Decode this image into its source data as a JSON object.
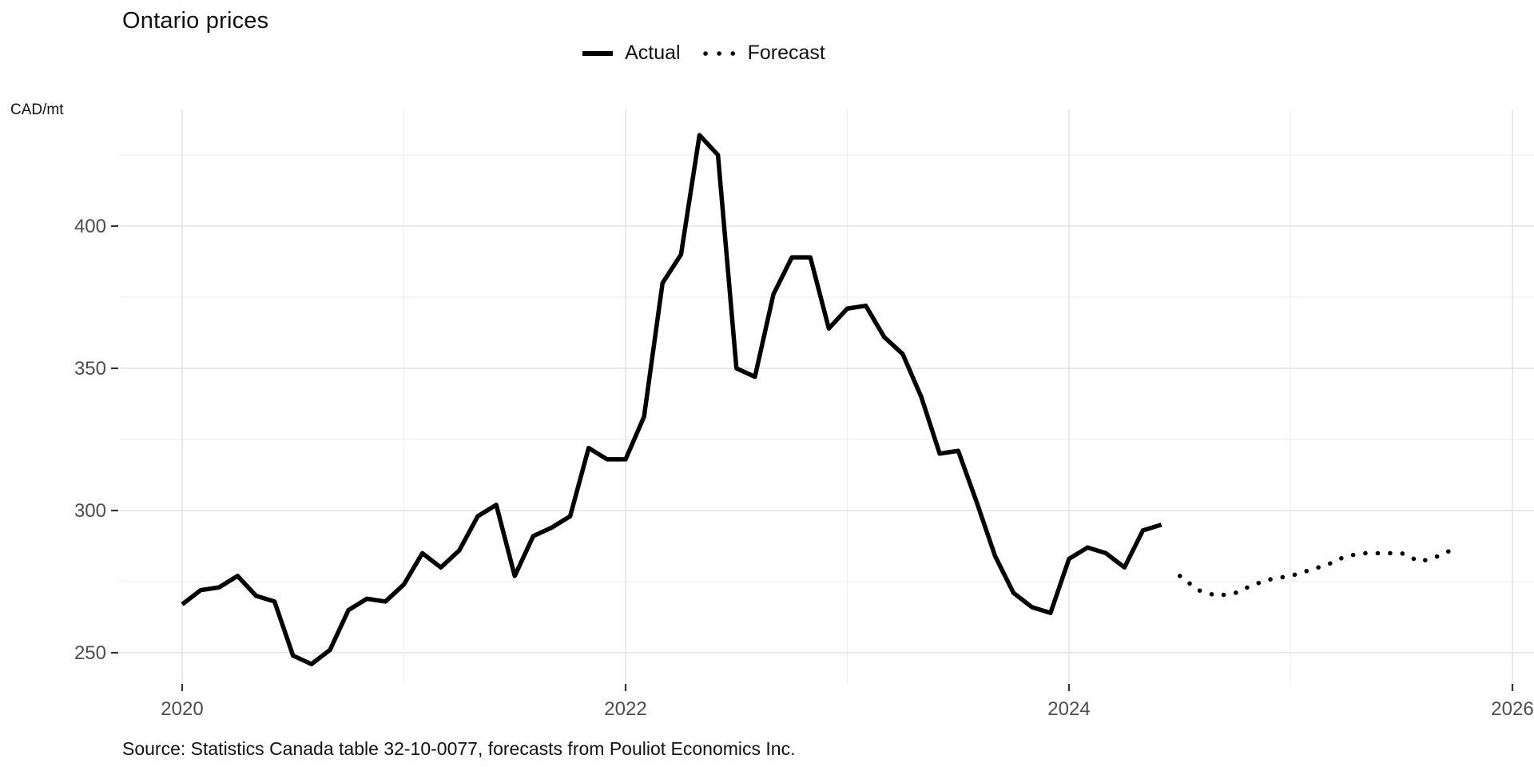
{
  "chart_data": {
    "type": "line",
    "title": "Ontario prices",
    "unit_label": "CAD/mt",
    "caption": "Source: Statistics Canada table 32-10-0077, forecasts from Pouliot Economics Inc.",
    "x_axis": {
      "tick_labels": [
        "2020",
        "2022",
        "2024",
        "2026"
      ],
      "major_years": [
        2020,
        2022,
        2024,
        2026
      ],
      "minor_years": [
        2021,
        2023,
        2025
      ],
      "range_years": [
        2019.66,
        2026.1
      ]
    },
    "y_axis": {
      "tick_labels": [
        "250",
        "300",
        "350",
        "400"
      ],
      "major_values": [
        250,
        300,
        350,
        400
      ],
      "minor_values": [
        275,
        325,
        375,
        425
      ],
      "range": [
        239,
        441
      ]
    },
    "legend_position": "top-center",
    "grid": true,
    "series": [
      {
        "name": "Actual",
        "style": "solid",
        "start_month": "2020-01",
        "start_index": 0,
        "values": [
          267,
          272,
          273,
          277,
          270,
          268,
          249,
          246,
          251,
          265,
          269,
          268,
          274,
          285,
          280,
          286,
          298,
          302,
          277,
          291,
          294,
          298,
          322,
          318,
          318,
          333,
          380,
          390,
          432,
          425,
          350,
          347,
          376,
          389,
          389,
          364,
          371,
          372,
          361,
          355,
          340,
          320,
          321,
          303,
          284,
          271,
          266,
          264,
          283,
          287,
          285,
          280,
          293,
          295
        ]
      },
      {
        "name": "Forecast",
        "style": "dotted",
        "start_month": "2024-07",
        "start_index": 54,
        "values": [
          277,
          272,
          270,
          271,
          274,
          276,
          277,
          279,
          281,
          284,
          285,
          285,
          285,
          282,
          284,
          287
        ]
      }
    ],
    "colors": {
      "line": "#000000",
      "grid_major": "#e2e2e2",
      "grid_minor": "#efefef",
      "tick_label": "#4d4d4d",
      "tick_mark": "#333333",
      "text": "#111111",
      "background": "#ffffff"
    }
  }
}
